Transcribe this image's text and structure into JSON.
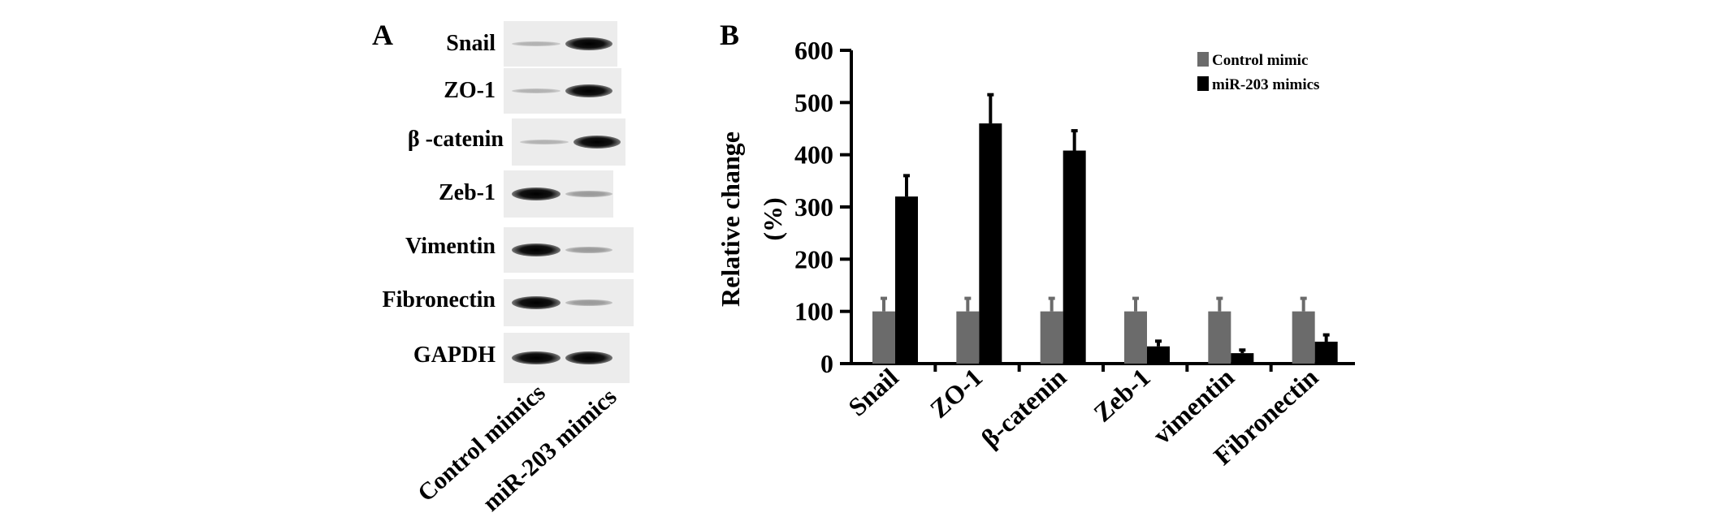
{
  "panel_a": {
    "letter": "A",
    "proteins": [
      "Snail",
      "ZO-1",
      "β -catenin",
      "Zeb-1",
      "Vimentin",
      "Fibronectin",
      "GAPDH"
    ],
    "lane_labels": [
      "Control mimics",
      "miR-203 mimics"
    ]
  },
  "panel_b": {
    "letter": "B"
  },
  "chart_data": {
    "type": "bar",
    "categories": [
      "Snail",
      "ZO-1",
      "β-catenin",
      "Zeb-1",
      "vimentin",
      "Fibronectin"
    ],
    "series": [
      {
        "name": "Control mimic",
        "values": [
          100,
          100,
          100,
          100,
          100,
          100
        ],
        "errors": [
          25,
          25,
          25,
          25,
          25,
          25
        ],
        "color": "#6b6b6b"
      },
      {
        "name": "miR-203 mimics",
        "values": [
          320,
          460,
          408,
          33,
          20,
          42
        ],
        "errors": [
          40,
          55,
          38,
          10,
          6,
          13
        ],
        "color": "#000000"
      }
    ],
    "title": "",
    "xlabel": "",
    "ylabel": "Relative change (%)",
    "ylim": [
      0,
      600
    ],
    "yticks": [
      0,
      100,
      200,
      300,
      400,
      500,
      600
    ],
    "grid": false,
    "legend_position": "top-right"
  }
}
